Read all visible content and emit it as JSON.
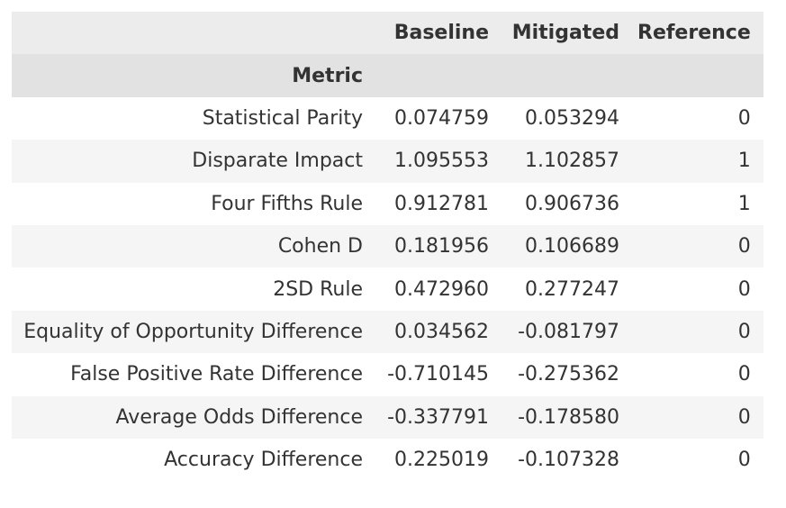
{
  "table": {
    "columns": [
      "Baseline",
      "Mitigated",
      "Reference"
    ],
    "index_name": "Metric",
    "rows": [
      {
        "metric": "Statistical Parity",
        "baseline": "0.074759",
        "mitigated": "0.053294",
        "reference": "0"
      },
      {
        "metric": "Disparate Impact",
        "baseline": "1.095553",
        "mitigated": "1.102857",
        "reference": "1"
      },
      {
        "metric": "Four Fifths Rule",
        "baseline": "0.912781",
        "mitigated": "0.906736",
        "reference": "1"
      },
      {
        "metric": "Cohen D",
        "baseline": "0.181956",
        "mitigated": "0.106689",
        "reference": "0"
      },
      {
        "metric": "2SD Rule",
        "baseline": "0.472960",
        "mitigated": "0.277247",
        "reference": "0"
      },
      {
        "metric": "Equality of Opportunity Difference",
        "baseline": "0.034562",
        "mitigated": "-0.081797",
        "reference": "0"
      },
      {
        "metric": "False Positive Rate Difference",
        "baseline": "-0.710145",
        "mitigated": "-0.275362",
        "reference": "0"
      },
      {
        "metric": "Average Odds Difference",
        "baseline": "-0.337791",
        "mitigated": "-0.178580",
        "reference": "0"
      },
      {
        "metric": "Accuracy Difference",
        "baseline": "0.225019",
        "mitigated": "-0.107328",
        "reference": "0"
      }
    ]
  }
}
